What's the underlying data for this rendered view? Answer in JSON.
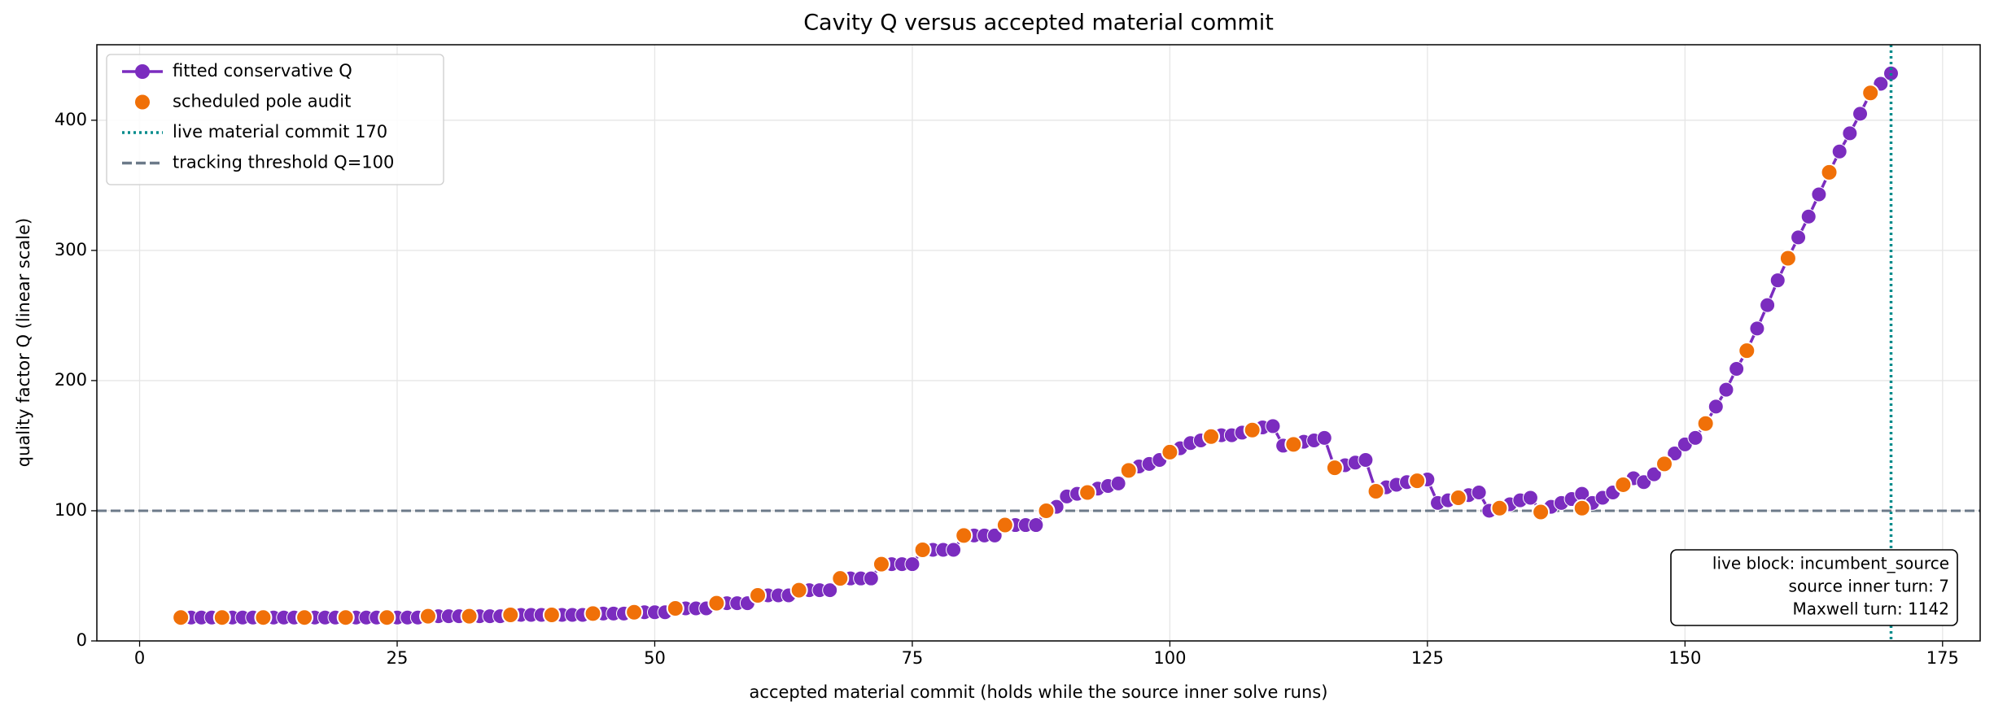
{
  "chart_data": {
    "type": "line",
    "title": "Cavity Q versus accepted material commit",
    "xlabel": "accepted material commit (holds while the source inner solve runs)",
    "ylabel": "quality factor Q (linear scale)",
    "xlim": [
      -4.15,
      178.65
    ],
    "ylim": [
      0,
      458
    ],
    "xticks": [
      0,
      25,
      50,
      75,
      100,
      125,
      150,
      175
    ],
    "yticks": [
      0,
      100,
      200,
      300,
      400
    ],
    "grid": true,
    "legend": "upper left",
    "series": [
      {
        "name": "fitted conservative Q",
        "color": "#7b2cbf",
        "style": "line-markers",
        "x": [
          4,
          5,
          6,
          7,
          8,
          9,
          10,
          11,
          12,
          13,
          14,
          15,
          16,
          17,
          18,
          19,
          20,
          21,
          22,
          23,
          24,
          25,
          26,
          27,
          28,
          29,
          30,
          31,
          32,
          33,
          34,
          35,
          36,
          37,
          38,
          39,
          40,
          41,
          42,
          43,
          44,
          45,
          46,
          47,
          48,
          49,
          50,
          51,
          52,
          53,
          54,
          55,
          56,
          57,
          58,
          59,
          60,
          61,
          62,
          63,
          64,
          65,
          66,
          67,
          68,
          69,
          70,
          71,
          72,
          73,
          74,
          75,
          76,
          77,
          78,
          79,
          80,
          81,
          82,
          83,
          84,
          85,
          86,
          87,
          88,
          89,
          90,
          91,
          92,
          93,
          94,
          95,
          96,
          97,
          98,
          99,
          100,
          101,
          102,
          103,
          104,
          105,
          106,
          107,
          108,
          109,
          110,
          111,
          112,
          113,
          114,
          115,
          116,
          117,
          118,
          119,
          120,
          121,
          122,
          123,
          124,
          125,
          126,
          127,
          128,
          129,
          130,
          131,
          132,
          133,
          134,
          135,
          136,
          137,
          138,
          139,
          140,
          141,
          142,
          143,
          144,
          145,
          146,
          147,
          148,
          149,
          150,
          151,
          152,
          153,
          154,
          155,
          156,
          157,
          158,
          159,
          160,
          161,
          162,
          163,
          164,
          165,
          166,
          167,
          168,
          169,
          170
        ],
        "values": [
          18,
          18,
          18,
          18,
          18,
          18,
          18,
          18,
          18,
          18,
          18,
          18,
          18,
          18,
          18,
          18,
          18,
          18,
          18,
          18,
          18,
          18,
          18,
          18,
          19,
          19,
          19,
          19,
          19,
          19,
          19,
          19,
          20,
          20,
          20,
          20,
          20,
          20,
          20,
          20,
          21,
          21,
          21,
          21,
          22,
          22,
          22,
          22,
          25,
          25,
          25,
          25,
          29,
          29,
          29,
          29,
          35,
          35,
          35,
          35,
          39,
          39,
          39,
          39,
          48,
          48,
          48,
          48,
          59,
          59,
          59,
          59,
          70,
          70,
          70,
          70,
          81,
          81,
          81,
          81,
          89,
          89,
          89,
          89,
          100,
          103,
          111,
          113,
          114,
          117,
          119,
          121,
          131,
          134,
          136,
          139,
          145,
          148,
          152,
          154,
          157,
          158,
          158,
          160,
          162,
          164,
          165,
          150,
          151,
          153,
          154,
          156,
          133,
          135,
          137,
          139,
          115,
          118,
          120,
          122,
          123,
          124,
          106,
          108,
          110,
          112,
          114,
          100,
          102,
          105,
          108,
          110,
          100,
          103,
          106,
          109,
          113,
          106,
          110,
          114,
          119,
          125,
          122,
          128,
          136,
          144,
          151,
          156,
          167,
          180,
          193,
          209,
          223,
          240,
          258,
          277,
          294,
          310,
          326,
          343,
          360,
          376,
          390,
          405,
          421,
          428,
          436
        ]
      },
      {
        "name": "scheduled pole audit",
        "color": "#f07008",
        "style": "markers",
        "x": [
          4,
          8,
          12,
          16,
          20,
          24,
          28,
          32,
          36,
          40,
          44,
          48,
          52,
          56,
          60,
          64,
          68,
          72,
          76,
          80,
          84,
          88,
          92,
          96,
          100,
          104,
          108,
          112,
          116,
          120,
          124,
          128,
          132,
          136,
          140,
          144,
          148,
          152,
          156,
          160,
          164,
          168
        ],
        "values": [
          18,
          18,
          18,
          18,
          18,
          18,
          19,
          19,
          20,
          20,
          21,
          22,
          25,
          29,
          35,
          39,
          48,
          59,
          70,
          81,
          89,
          100,
          114,
          131,
          145,
          157,
          162,
          151,
          133,
          115,
          123,
          110,
          102,
          99,
          102,
          120,
          136,
          167,
          223,
          294,
          360,
          421
        ]
      }
    ],
    "vline": {
      "x": 170,
      "name": "live material commit 170",
      "color": "#008b8b"
    },
    "hline": {
      "y": 100,
      "name": "tracking threshold Q=100",
      "color": "#6c7a89"
    },
    "annotation": [
      "live block: incumbent_source",
      "source inner turn: 7",
      "Maxwell turn: 1142"
    ]
  }
}
